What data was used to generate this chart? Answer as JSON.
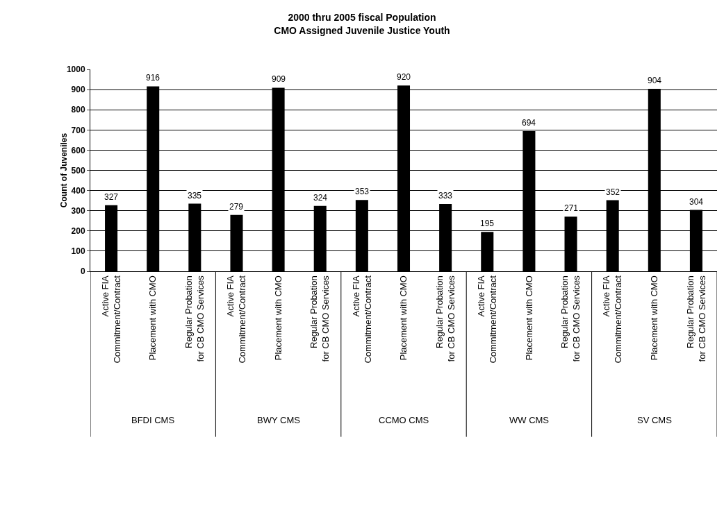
{
  "chart_data": {
    "type": "bar",
    "title": "2000 thru 2005 fiscal Population\nCMO Assigned Juvenile Justice Youth",
    "ylabel": "Count of Juveniles",
    "categories": [
      "Active FIA Commitment/Contract",
      "Placement with CMO",
      "Regular Probation for CB CMO Services",
      "Active FIA Commitment/Contract",
      "Placement with CMO",
      "Regular Probation for CB CMO Services",
      "Active FIA Commitment/Contract",
      "Placement with CMO",
      "Regular Probation for CB CMO Services",
      "Active FIA Commitment/Contract",
      "Placement with CMO",
      "Regular Probation for CB CMO Services",
      "Active FIA Commitment/Contract",
      "Placement with CMO",
      "Regular Probation for CB CMO Services"
    ],
    "values": [
      327,
      916,
      335,
      279,
      909,
      324,
      353,
      920,
      333,
      195,
      694,
      271,
      352,
      904,
      304
    ],
    "color": "#000000",
    "data_labels": true,
    "ylim": [
      0,
      1000
    ],
    "yticks": [
      0,
      100,
      200,
      300,
      400,
      500,
      600,
      700,
      800,
      900,
      1000
    ],
    "grid": "y",
    "annotations": [
      "BFDI CMS",
      "BWY CMS",
      "CCMO CMS",
      "WW CMS",
      "SV CMS"
    ]
  }
}
